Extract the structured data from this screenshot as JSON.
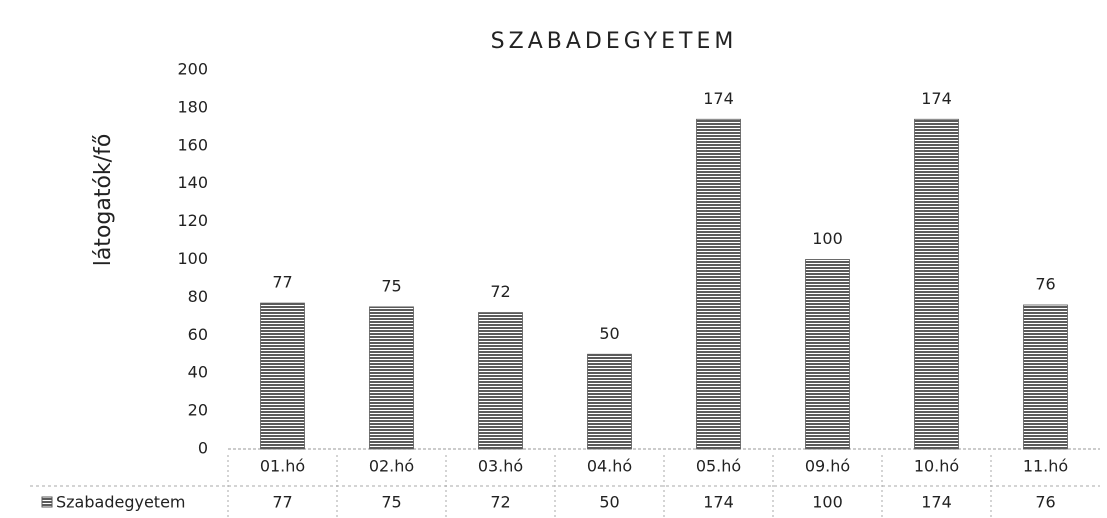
{
  "chart_data": {
    "type": "bar",
    "title": "SZABADEGYETEM",
    "y_label": "látogatók/fő",
    "categories": [
      "01.hó",
      "02.hó",
      "03.hó",
      "04.hó",
      "05.hó",
      "09.hó",
      "10.hó",
      "11.hó"
    ],
    "series": [
      {
        "name": "Szabadegyetem",
        "color": "#5a5a5a",
        "values": [
          77,
          75,
          72,
          50,
          174,
          100,
          174,
          76
        ]
      }
    ],
    "ylim": [
      0,
      200
    ],
    "yticks": [
      0,
      20,
      40,
      60,
      80,
      100,
      120,
      140,
      160,
      180,
      200
    ],
    "grid": false,
    "data_table": true
  }
}
